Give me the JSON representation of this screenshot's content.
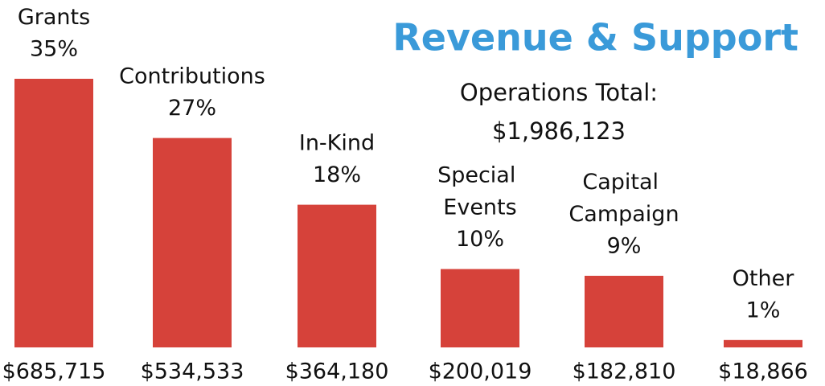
{
  "chart_data": {
    "type": "bar",
    "title": "Revenue & Support",
    "annotation": {
      "text": "Operations Total:",
      "value": 1986123,
      "label": "$1,986,123"
    },
    "categories": [
      "Grants",
      "Contributions",
      "In-Kind",
      "Special Events",
      "Capital Campaign",
      "Other"
    ],
    "values": [
      685715,
      534533,
      364180,
      200019,
      182810,
      18866
    ],
    "value_labels": [
      "$685,715",
      "$534,533",
      "$364,180",
      "$200,019",
      "$182,810",
      "$18,866"
    ],
    "percent_labels": [
      "35%",
      "27%",
      "18%",
      "10%",
      "9%",
      "1%"
    ],
    "color": "#d6423a",
    "ylim": [
      0,
      700000
    ]
  }
}
